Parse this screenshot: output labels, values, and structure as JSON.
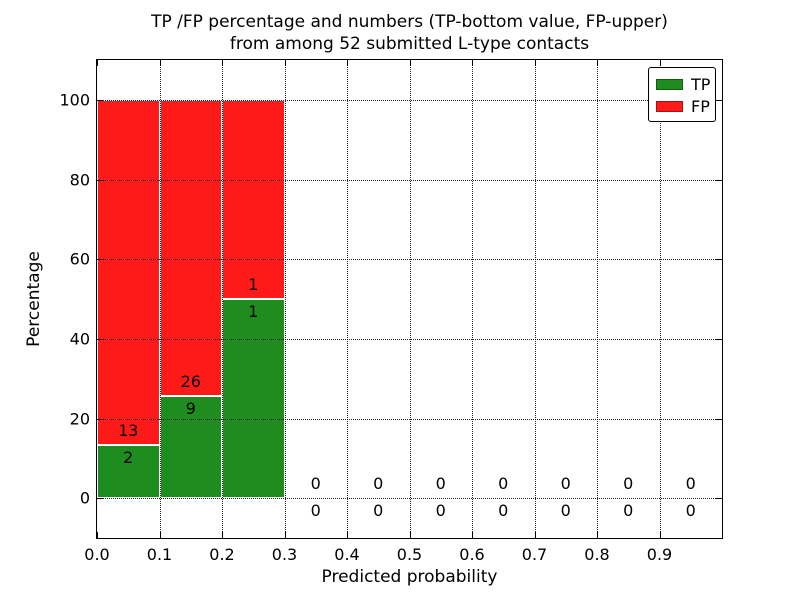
{
  "chart_data": {
    "type": "bar",
    "stacked": true,
    "title": "TP /FP percentage and numbers (TP-bottom value, FP-upper)\nfrom among 52 submitted L-type contacts",
    "title_line1": "TP /FP percentage and numbers (TP-bottom value, FP-upper)",
    "title_line2": "from among 52 submitted L-type contacts",
    "xlabel": "Predicted probability",
    "ylabel": "Percentage",
    "xlim": [
      0.0,
      1.0
    ],
    "ylim": [
      -10,
      110
    ],
    "x_ticks": [
      0.0,
      0.1,
      0.2,
      0.3,
      0.4,
      0.5,
      0.6,
      0.7,
      0.8,
      0.9
    ],
    "x_tick_labels": [
      "0.0",
      "0.1",
      "0.2",
      "0.3",
      "0.4",
      "0.5",
      "0.6",
      "0.7",
      "0.8",
      "0.9"
    ],
    "y_ticks": [
      0,
      20,
      40,
      60,
      80,
      100
    ],
    "y_tick_labels": [
      "0",
      "20",
      "40",
      "60",
      "80",
      "100"
    ],
    "grid": true,
    "axisbelow": false,
    "total_contacts": 52,
    "bin_width": 0.1,
    "bin_edges": [
      0.0,
      0.1,
      0.2,
      0.3,
      0.4,
      0.5,
      0.6,
      0.7,
      0.8,
      0.9,
      1.0
    ],
    "bin_centers": [
      0.05,
      0.15,
      0.25,
      0.35,
      0.45,
      0.55,
      0.65,
      0.75,
      0.85,
      0.95
    ],
    "series": [
      {
        "name": "TP",
        "color": "#1e8c1e",
        "counts": [
          2,
          9,
          1,
          0,
          0,
          0,
          0,
          0,
          0,
          0
        ],
        "pct": [
          13.33,
          25.71,
          50.0,
          0,
          0,
          0,
          0,
          0,
          0,
          0
        ]
      },
      {
        "name": "FP",
        "color": "#ff1a1a",
        "counts": [
          13,
          26,
          1,
          0,
          0,
          0,
          0,
          0,
          0,
          0
        ],
        "pct": [
          86.67,
          74.29,
          50.0,
          0,
          0,
          0,
          0,
          0,
          0,
          0
        ]
      }
    ],
    "legend": {
      "position": "upper right",
      "entries": [
        {
          "label": "TP",
          "color": "#1e8c1e"
        },
        {
          "label": "FP",
          "color": "#ff1a1a"
        }
      ]
    }
  }
}
